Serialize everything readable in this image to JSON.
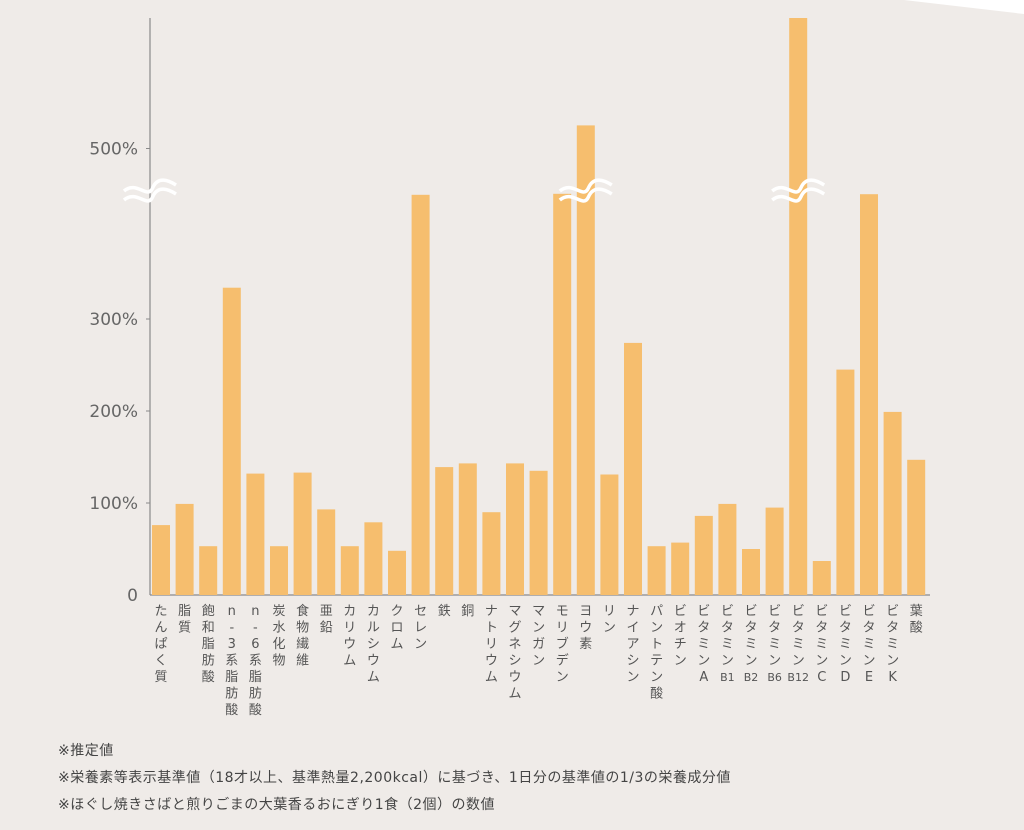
{
  "colors": {
    "bar": "#f6be6e",
    "axis": "#8a8a8a",
    "background": "#efebe8",
    "break_mark": "#ffffff"
  },
  "chart_data": {
    "type": "bar",
    "categories": [
      "たんぱく質",
      "脂質",
      "飽和脂肪酸",
      "n-3系脂肪酸",
      "n-6系脂肪酸",
      "炭水化物",
      "食物繊維",
      "亜鉛",
      "カリウム",
      "カルシウム",
      "クロム",
      "セレン",
      "鉄",
      "銅",
      "ナトリウム",
      "マグネシウム",
      "マンガン",
      "モリブデン",
      "ヨウ素",
      "リン",
      "ナイアシン",
      "パントテン酸",
      "ビオチン",
      "ビタミンA",
      "ビタミンB1",
      "ビタミンB2",
      "ビタミンB6",
      "ビタミンB12",
      "ビタミンC",
      "ビタミンD",
      "ビタミンE",
      "ビタミンK",
      "葉酸"
    ],
    "category_labels": [
      [
        "た",
        "ん",
        "ぱ",
        "く",
        "質"
      ],
      [
        "脂",
        "質"
      ],
      [
        "飽",
        "和",
        "脂",
        "肪",
        "酸"
      ],
      [
        "n",
        "-",
        "3",
        "系",
        "脂",
        "肪",
        "酸"
      ],
      [
        "n",
        "-",
        "6",
        "系",
        "脂",
        "肪",
        "酸"
      ],
      [
        "炭",
        "水",
        "化",
        "物"
      ],
      [
        "食",
        "物",
        "繊",
        "維"
      ],
      [
        "亜",
        "鉛"
      ],
      [
        "カ",
        "リ",
        "ウ",
        "ム"
      ],
      [
        "カ",
        "ル",
        "シ",
        "ウ",
        "ム"
      ],
      [
        "ク",
        "ロ",
        "ム"
      ],
      [
        "セ",
        "レ",
        "ン"
      ],
      [
        "鉄"
      ],
      [
        "銅"
      ],
      [
        "ナ",
        "ト",
        "リ",
        "ウ",
        "ム"
      ],
      [
        "マ",
        "グ",
        "ネ",
        "シ",
        "ウ",
        "ム"
      ],
      [
        "マ",
        "ン",
        "ガ",
        "ン"
      ],
      [
        "モ",
        "リ",
        "ブ",
        "デ",
        "ン"
      ],
      [
        "ヨ",
        "ウ",
        "素"
      ],
      [
        "リ",
        "ン"
      ],
      [
        "ナ",
        "イ",
        "ア",
        "シ",
        "ン"
      ],
      [
        "パ",
        "ン",
        "ト",
        "テ",
        "ン",
        "酸"
      ],
      [
        "ビ",
        "オ",
        "チ",
        "ン"
      ],
      [
        "ビ",
        "タ",
        "ミ",
        "ン",
        "A"
      ],
      [
        "ビ",
        "タ",
        "ミ",
        "ン",
        "B1"
      ],
      [
        "ビ",
        "タ",
        "ミ",
        "ン",
        "B2"
      ],
      [
        "ビ",
        "タ",
        "ミ",
        "ン",
        "B6"
      ],
      [
        "ビ",
        "タ",
        "ミ",
        "ン",
        "B12"
      ],
      [
        "ビ",
        "タ",
        "ミ",
        "ン",
        "C"
      ],
      [
        "ビ",
        "タ",
        "ミ",
        "ン",
        "D"
      ],
      [
        "ビ",
        "タ",
        "ミ",
        "ン",
        "E"
      ],
      [
        "ビ",
        "タ",
        "ミ",
        "ン",
        "K"
      ],
      [
        "葉",
        "酸"
      ]
    ],
    "values": [
      76,
      99,
      53,
      334,
      132,
      53,
      133,
      93,
      53,
      79,
      48,
      352,
      139,
      143,
      90,
      143,
      135,
      365,
      530,
      131,
      274,
      53,
      57,
      86,
      99,
      50,
      95,
      700,
      37,
      245,
      360,
      199,
      147
    ],
    "axis_break": {
      "lower": 350,
      "upper": 450
    },
    "y_ticks": [
      {
        "value": 0,
        "label": "0"
      },
      {
        "value": 100,
        "label": "100%"
      },
      {
        "value": 200,
        "label": "200%"
      },
      {
        "value": 300,
        "label": "300%"
      },
      {
        "value": 500,
        "label": "500%"
      }
    ],
    "break_marked_bars": [
      18,
      27
    ],
    "title": "",
    "xlabel": "",
    "ylabel": "",
    "grid": false,
    "legend": "none"
  },
  "footnotes": [
    "※推定値",
    "※栄養素等表示基準値（18才以上、基準熱量2,200kcal）に基づき、1日分の基準値の1/3の栄養成分値",
    "※ほぐし焼きさばと煎りごまの大葉香るおにぎり1食（2個）の数値"
  ]
}
